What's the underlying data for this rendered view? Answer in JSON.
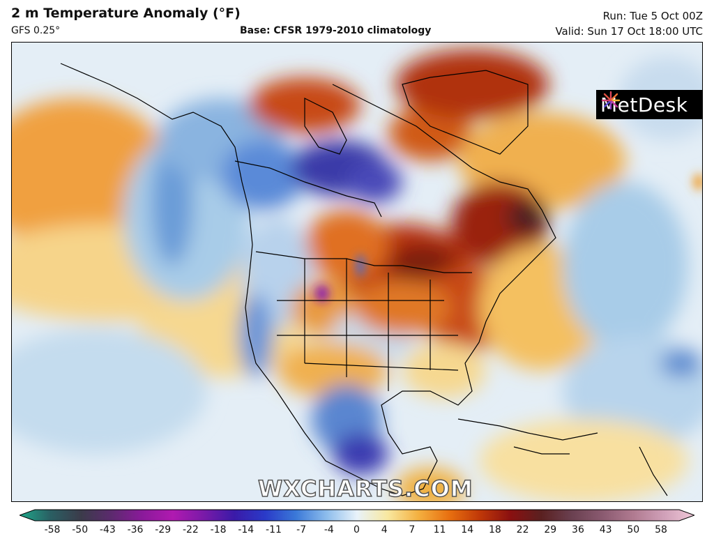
{
  "header": {
    "title": "2 m Temperature Anomaly (°F)",
    "model": "GFS 0.25°",
    "base": "Base: CFSR 1979-2010 climatology",
    "run": "Run: Tue 5 Oct 00Z",
    "valid": "Valid: Sun 17 Oct 18:00 UTC"
  },
  "logo": {
    "text": "MetDesk"
  },
  "watermark": "WXCHARTS.COM",
  "colorbar": {
    "ticks": [
      "-58",
      "-50",
      "-43",
      "-36",
      "-29",
      "-22",
      "-18",
      "-14",
      "-11",
      "-7",
      "-4",
      "0",
      "4",
      "7",
      "11",
      "14",
      "18",
      "22",
      "29",
      "36",
      "43",
      "50",
      "58"
    ],
    "colors": [
      "#1fa88a",
      "#2a5f63",
      "#3b3b4a",
      "#5c2a6e",
      "#8a1a9a",
      "#b01ab0",
      "#7a1aa8",
      "#3a1aa8",
      "#2a3ac8",
      "#3a78d8",
      "#8cbcec",
      "#e8f2fa",
      "#f8e8a0",
      "#f4b040",
      "#e87010",
      "#c03808",
      "#8a1010",
      "#5a2020",
      "#6a4050",
      "#8a5a70",
      "#b07a90",
      "#d0a0b8",
      "#f0c8d8"
    ]
  },
  "map_colors": {
    "warm": "#f0a030",
    "hot": "#c84010",
    "very_hot": "#8a1a10",
    "cool": "#a8cce8",
    "cold": "#4a82d0",
    "very_cold": "#3a2aa0",
    "neutral": "#eef4f8",
    "light_warm": "#f8dc98"
  }
}
